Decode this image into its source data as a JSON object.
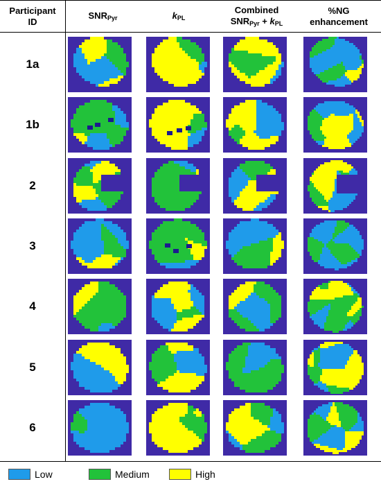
{
  "header": {
    "participant_line1": "Participant",
    "participant_line2": "ID",
    "snr_main": "SNR",
    "snr_sub": "Pyr",
    "kpl_main": "k",
    "kpl_sub": "PL",
    "combined_line1": "Combined",
    "combined_snr": "SNR",
    "combined_snr_sub": "Pyr",
    "combined_plus": " + ",
    "combined_k": "k",
    "combined_k_sub": "PL",
    "ng_line1": "%NG",
    "ng_line2": "enhancement"
  },
  "rows": [
    {
      "id": "1a"
    },
    {
      "id": "1b"
    },
    {
      "id": "2"
    },
    {
      "id": "3"
    },
    {
      "id": "4"
    },
    {
      "id": "5"
    },
    {
      "id": "6"
    }
  ],
  "legend": {
    "low": "Low",
    "medium": "Medium",
    "high": "High"
  },
  "colors": {
    "background": "#3f2aa6",
    "low": "#1f9bea",
    "medium": "#22c23a",
    "high": "#ffff00",
    "dark_spot": "#1c1a8e"
  }
}
